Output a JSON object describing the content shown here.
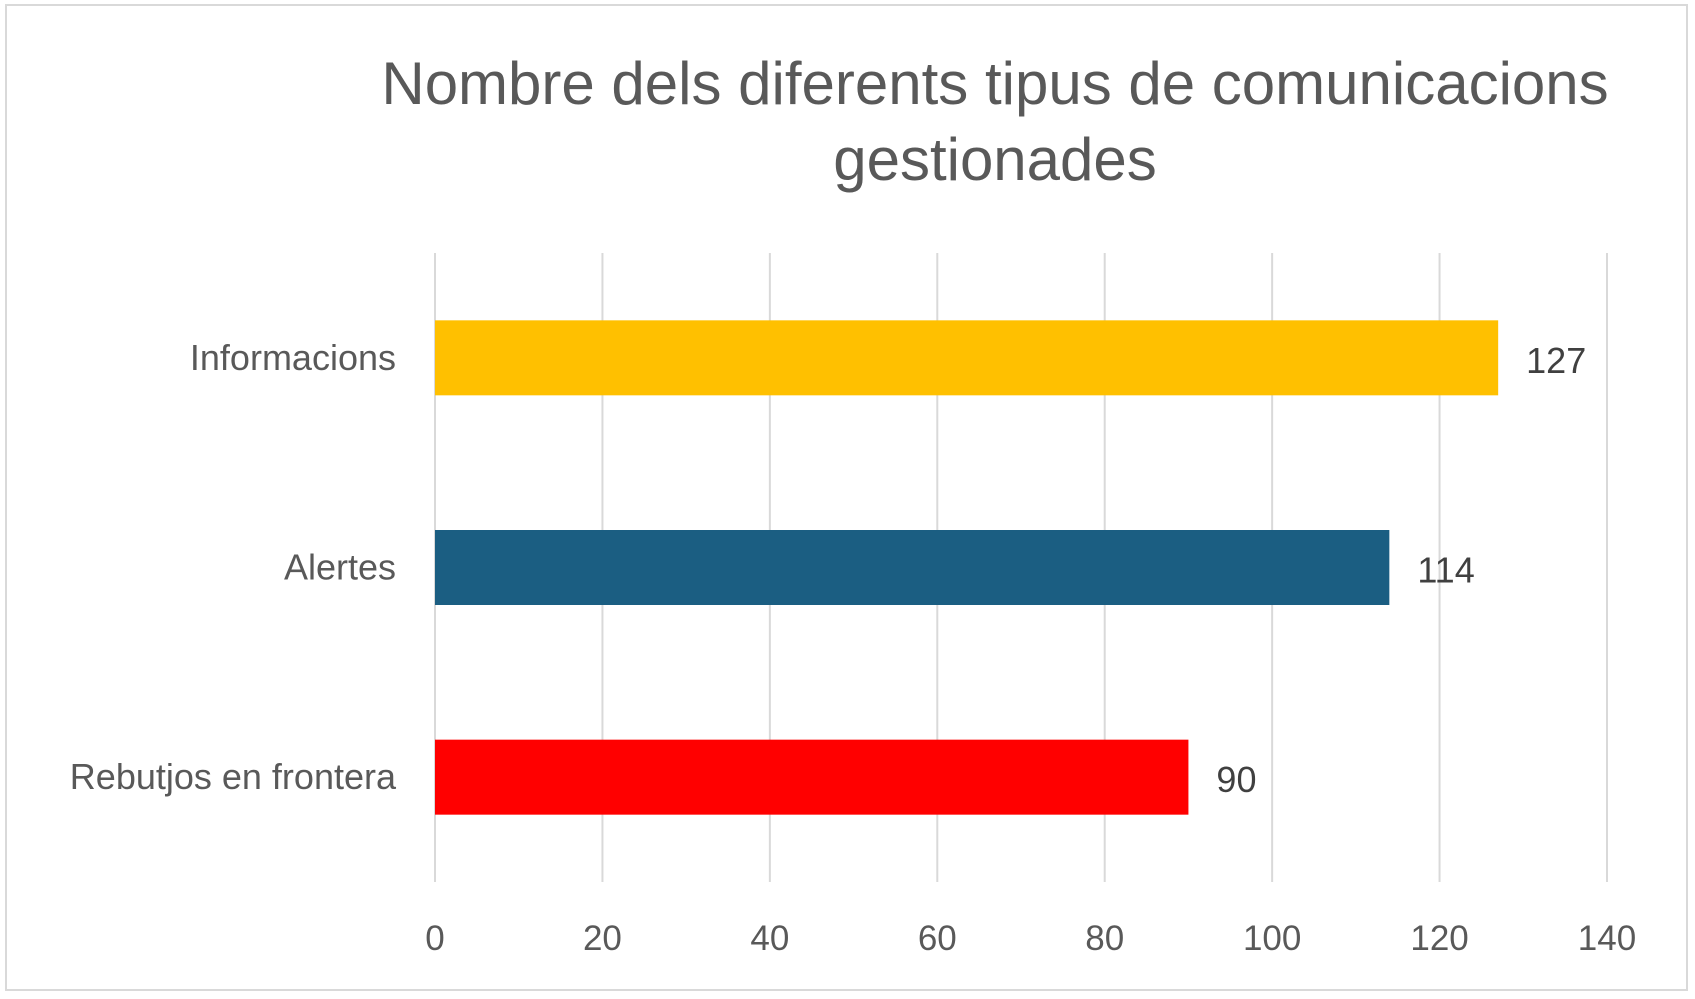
{
  "chart_data": {
    "type": "bar",
    "orientation": "horizontal",
    "title": "Nombre dels diferents tipus de comunicacions gestionades",
    "categories": [
      "Informacions",
      "Alertes",
      "Rebutjos en frontera"
    ],
    "values": [
      127,
      114,
      90
    ],
    "data_labels": [
      "127",
      "114",
      "90"
    ],
    "bar_colors": [
      "#FFC000",
      "#1B5E82",
      "#FF0000"
    ],
    "xlim": [
      0,
      140
    ],
    "x_ticks": [
      0,
      20,
      40,
      60,
      80,
      100,
      120,
      140
    ],
    "x_tick_labels": [
      "0",
      "20",
      "40",
      "60",
      "80",
      "100",
      "120",
      "140"
    ],
    "grid": true,
    "legend": "none",
    "xlabel": "",
    "ylabel": ""
  }
}
